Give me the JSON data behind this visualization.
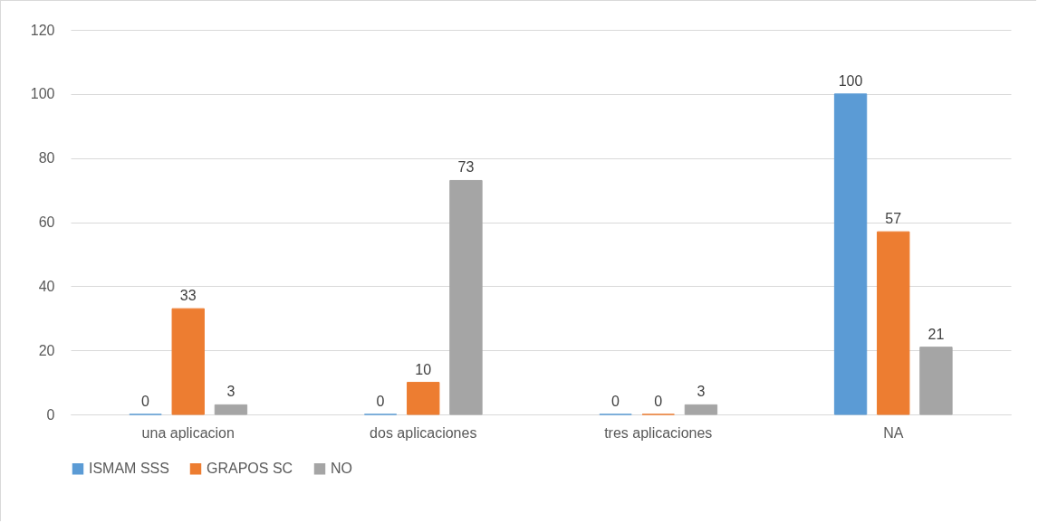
{
  "chart_data": {
    "type": "bar",
    "categories": [
      "una aplicacion",
      "dos aplicaciones",
      "tres aplicaciones",
      "NA"
    ],
    "series": [
      {
        "name": "ISMAM SSS",
        "color": "#5b9bd5",
        "values": [
          0,
          0,
          0,
          100
        ]
      },
      {
        "name": "GRAPOS SC",
        "color": "#ed7d31",
        "values": [
          33,
          10,
          0,
          57
        ]
      },
      {
        "name": "NO",
        "color": "#a5a5a5",
        "values": [
          3,
          73,
          3,
          21
        ]
      }
    ],
    "ylim": [
      0,
      120
    ],
    "yticks": [
      0,
      20,
      40,
      60,
      80,
      100,
      120
    ],
    "grid": "y",
    "legend": "bottom",
    "data_labels": true
  }
}
